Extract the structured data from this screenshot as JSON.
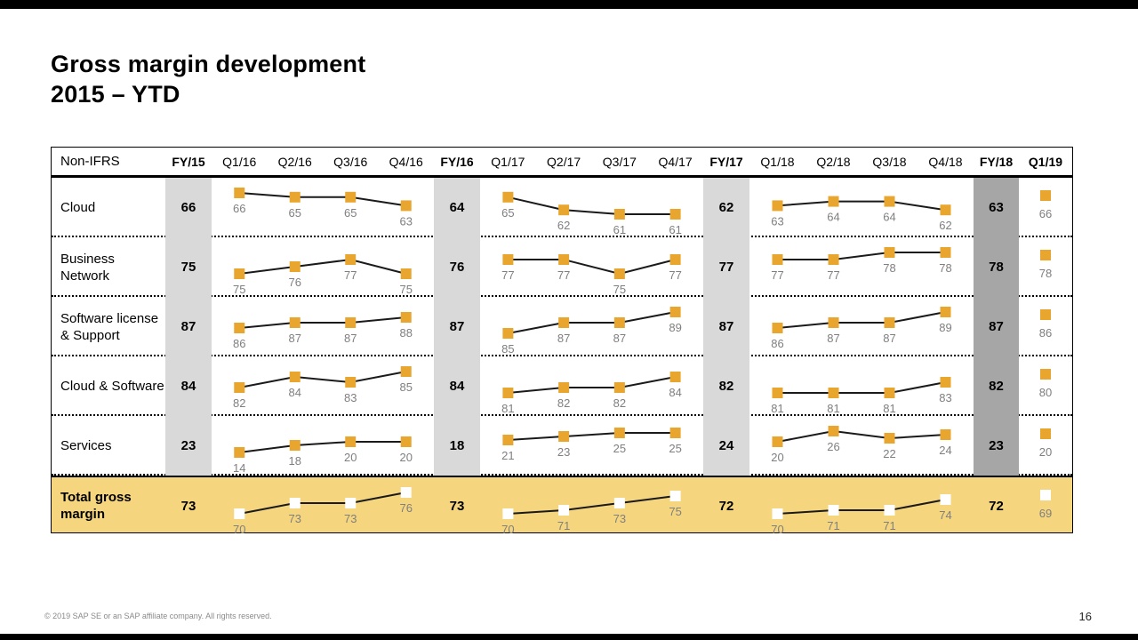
{
  "header": {
    "title_line1": "Gross margin development",
    "title_line2": "2015 – YTD"
  },
  "footer": {
    "copyright": "© 2019 SAP SE or an SAP affiliate company. All rights reserved.",
    "page_number": "16"
  },
  "colors": {
    "marker_gold": "#e9a62f",
    "marker_total": "#ffffff",
    "line": "#1a1a1a",
    "value_label": "#7f7f7f",
    "fy_stripe_light": "#d9d9d9",
    "fy_stripe_dark": "#a6a6a6",
    "total_row_bg": "#f5d57e"
  },
  "chart_data": {
    "type": "table",
    "title": "Gross margin development 2015 – YTD",
    "subtitle": "Non-IFRS gross margin in percent, quarterly sparklines with fiscal-year summaries",
    "corner_label": "Non-IFRS",
    "columns": [
      "FY/15",
      "Q1/16",
      "Q2/16",
      "Q3/16",
      "Q4/16",
      "FY/16",
      "Q1/17",
      "Q2/17",
      "Q3/17",
      "Q4/17",
      "FY/17",
      "Q1/18",
      "Q2/18",
      "Q3/18",
      "Q4/18",
      "FY/18",
      "Q1/19"
    ],
    "rows": [
      {
        "label": "Cloud",
        "total": false,
        "fy15": 66,
        "q16": [
          66,
          65,
          65,
          63
        ],
        "fy16": 64,
        "q17": [
          65,
          62,
          61,
          61
        ],
        "fy17": 62,
        "q18": [
          63,
          64,
          64,
          62
        ],
        "fy18": 63,
        "q119": 66
      },
      {
        "label": "Business Network",
        "total": false,
        "fy15": 75,
        "q16": [
          75,
          76,
          77,
          75
        ],
        "fy16": 76,
        "q17": [
          77,
          77,
          75,
          77
        ],
        "fy17": 77,
        "q18": [
          77,
          77,
          78,
          78
        ],
        "fy18": 78,
        "q119": 78
      },
      {
        "label": "Software license & Support",
        "total": false,
        "fy15": 87,
        "q16": [
          86,
          87,
          87,
          88
        ],
        "fy16": 87,
        "q17": [
          85,
          87,
          87,
          89
        ],
        "fy17": 87,
        "q18": [
          86,
          87,
          87,
          89
        ],
        "fy18": 87,
        "q119": 86
      },
      {
        "label": "Cloud & Software",
        "total": false,
        "fy15": 84,
        "q16": [
          82,
          84,
          83,
          85
        ],
        "fy16": 84,
        "q17": [
          81,
          82,
          82,
          84
        ],
        "fy17": 82,
        "q18": [
          81,
          81,
          81,
          83
        ],
        "fy18": 82,
        "q119": 80
      },
      {
        "label": "Services",
        "total": false,
        "fy15": 23,
        "q16": [
          14,
          18,
          20,
          20
        ],
        "fy16": 18,
        "q17": [
          21,
          23,
          25,
          25
        ],
        "fy17": 24,
        "q18": [
          20,
          26,
          22,
          24
        ],
        "fy18": 23,
        "q119": 20
      },
      {
        "label": "Total gross margin",
        "total": true,
        "fy15": 73,
        "q16": [
          70,
          73,
          73,
          76
        ],
        "fy16": 73,
        "q17": [
          70,
          71,
          73,
          75
        ],
        "fy17": 72,
        "q18": [
          70,
          71,
          71,
          74
        ],
        "fy18": 72,
        "q119": 69
      }
    ]
  }
}
